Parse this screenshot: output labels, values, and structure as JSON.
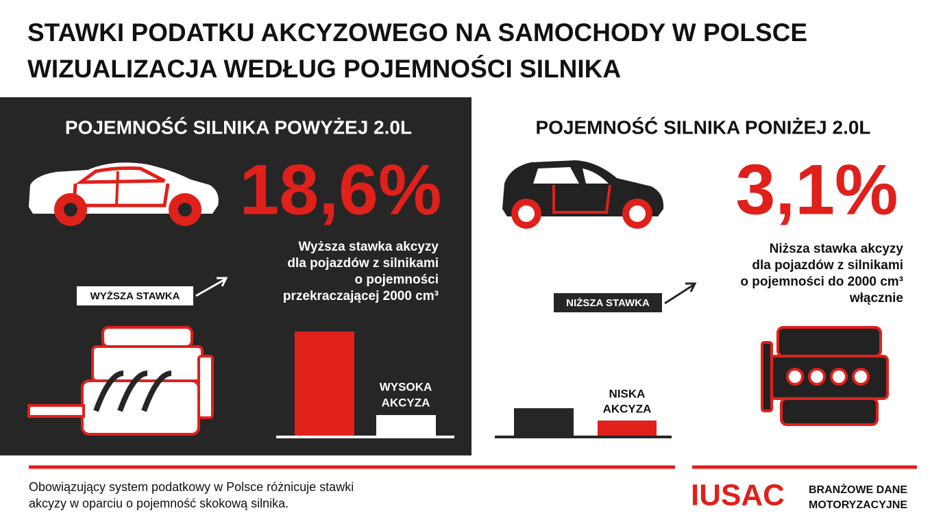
{
  "header": {
    "title_lines": [
      "STAWKI PODATKU AKCYZOWEGO NA SAMOCHODY W POLSCE",
      "WIZUALIZACJA WEDŁUG POJEMNOŚCI SILNIKA"
    ]
  },
  "left_panel": {
    "heading": "POJEMNOŚĆ SILNIKA POWYŻEJ 2.0L",
    "rate": "18,6%",
    "description_lines": [
      "Wyższa stawka akcyzy",
      "dla pojazdów z silnikami",
      "o pojemności",
      "przekraczającej 2000 cm³"
    ],
    "tag": "WYŻSZA STAWKA",
    "bar_label_lines": [
      "WYSOKA",
      "AKCYZA"
    ]
  },
  "right_panel": {
    "heading": "POJEMNOŚĆ SILNIKA PONIŻEJ 2.0L",
    "rate": "3,1%",
    "description_lines": [
      "Niższa stawka akcyzy",
      "dla pojazdów z silnikami",
      "o pojemności do 2000 cm³",
      "włącznie"
    ],
    "tag": "NIŻSZA STAWKA",
    "bar_label_lines": [
      "NISKA",
      "AKCYZA"
    ]
  },
  "footer": {
    "text_lines": [
      "Obowiązujący system podatkowy w Polsce różnicuje stawki",
      "akcyzy w oparciu o pojemność skokową silnika."
    ],
    "logo": "IUSAC",
    "tagline_lines": [
      "BRANŻOWE DANE",
      "MOTORYZACYJNE"
    ]
  }
}
